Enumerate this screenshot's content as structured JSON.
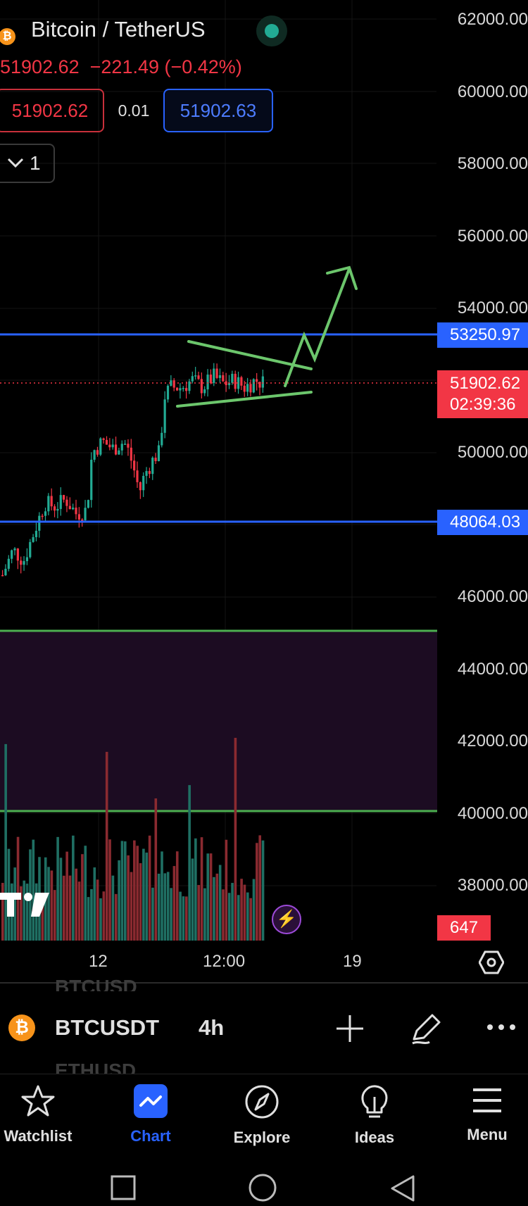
{
  "header": {
    "title": "Bitcoin / TetherUS",
    "last_price": "51902.62",
    "change": "−221.49 (−0.42%)",
    "sell_price": "51902.62",
    "spread": "0.01",
    "buy_price": "51902.63",
    "interval_multiplier": "1"
  },
  "price_axis": {
    "labels": [
      "62000.00",
      "60000.00",
      "58000.00",
      "56000.00",
      "54000.00",
      "50000.00",
      "46000.00",
      "44000.00",
      "42000.00",
      "40000.00",
      "38000.00"
    ],
    "resistance_tag": "53250.97",
    "current_tag": "51902.62",
    "countdown": "02:39:36",
    "support_tag": "48064.03",
    "volume_tag": "647"
  },
  "time_axis": {
    "labels": [
      "12",
      "12:00",
      "19"
    ]
  },
  "symbol_bar": {
    "prev_symbol": "BTCUSD",
    "symbol": "BTCUSDT",
    "timeframe": "4h",
    "next_symbol": "ETHUSD",
    "icons": [
      "bitcoin-icon",
      "plus-icon",
      "pencil-icon",
      "more-icon"
    ]
  },
  "nav": {
    "items": [
      {
        "label": "Watchlist",
        "icon": "star-icon"
      },
      {
        "label": "Chart",
        "icon": "chart-icon"
      },
      {
        "label": "Explore",
        "icon": "compass-icon"
      },
      {
        "label": "Ideas",
        "icon": "lightbulb-icon"
      },
      {
        "label": "Menu",
        "icon": "hamburger-icon"
      }
    ],
    "active": "Chart"
  },
  "colors": {
    "up": "#22ab94",
    "down": "#f23645",
    "level_line": "#2962ff",
    "drawing": "#6cc66c",
    "zone": "#1c0c22"
  }
}
